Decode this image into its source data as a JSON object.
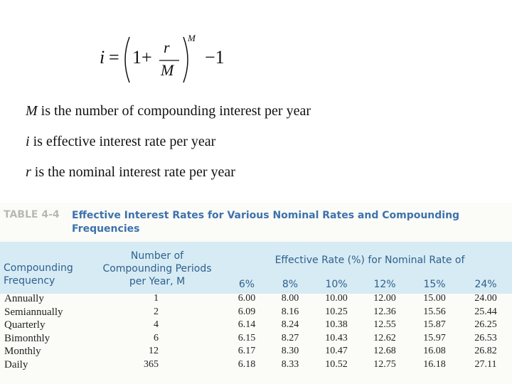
{
  "formula": {
    "lhs": "i",
    "eq": "=",
    "one_plus": "1+",
    "numerator": "r",
    "denominator": "M",
    "exponent": "M",
    "minus_one": "−1"
  },
  "definitions": [
    {
      "symbol": "M",
      "text": " is the number of compounding interest per year"
    },
    {
      "symbol": "i",
      "text": " is effective interest rate per year"
    },
    {
      "symbol": "r",
      "text": " is the nominal interest rate per year"
    }
  ],
  "table": {
    "label": "TABLE 4-4",
    "caption": "Effective Interest Rates for Various Nominal Rates and Compounding Frequencies",
    "col_frequency": "Compounding Frequency",
    "col_periods": "Number of Compounding Periods per Year, M",
    "col_group": "Effective Rate (%) for Nominal Rate of",
    "rates": [
      "6%",
      "8%",
      "10%",
      "12%",
      "15%",
      "24%"
    ],
    "rows": [
      [
        "Annually",
        "1",
        "6.00",
        "8.00",
        "10.00",
        "12.00",
        "15.00",
        "24.00"
      ],
      [
        "Semiannually",
        "2",
        "6.09",
        "8.16",
        "10.25",
        "12.36",
        "15.56",
        "25.44"
      ],
      [
        "Quarterly",
        "4",
        "6.14",
        "8.24",
        "10.38",
        "12.55",
        "15.87",
        "26.25"
      ],
      [
        "Bimonthly",
        "6",
        "6.15",
        "8.27",
        "10.43",
        "12.62",
        "15.97",
        "26.53"
      ],
      [
        "Monthly",
        "12",
        "6.17",
        "8.30",
        "10.47",
        "12.68",
        "16.08",
        "26.82"
      ],
      [
        "Daily",
        "365",
        "6.18",
        "8.33",
        "10.52",
        "12.75",
        "16.18",
        "27.11"
      ]
    ]
  }
}
